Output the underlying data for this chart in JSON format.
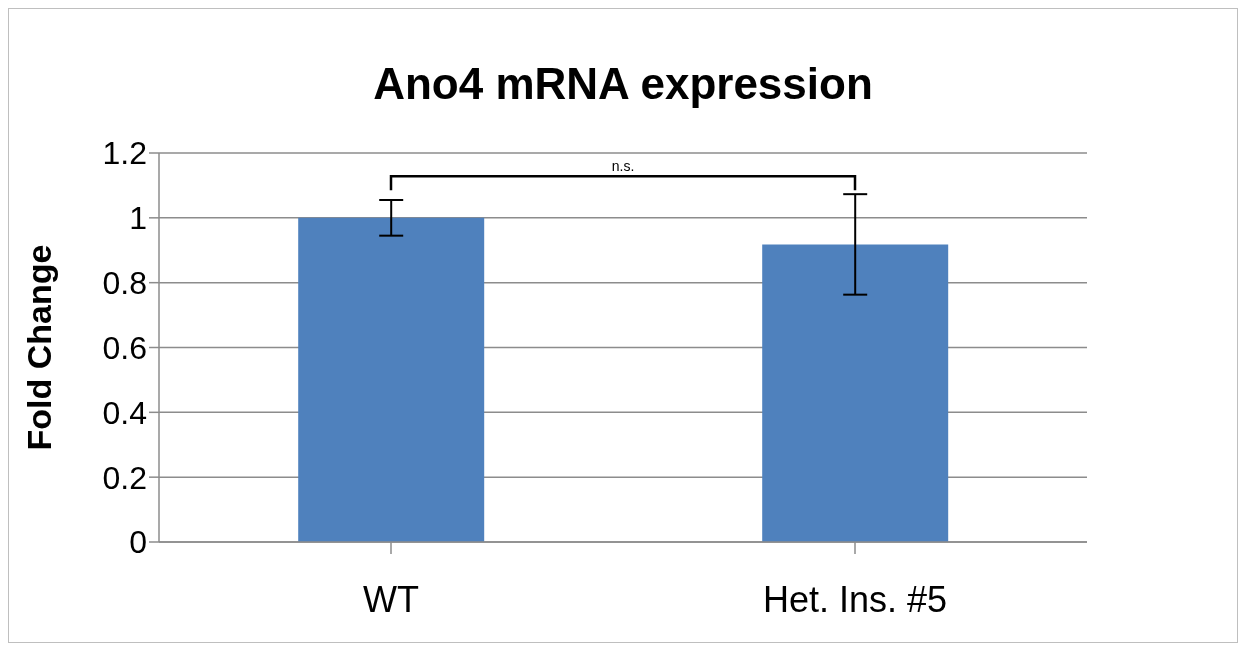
{
  "chart_data": {
    "type": "bar",
    "title": "Ano4 mRNA expression",
    "ylabel": "Fold Change",
    "categories": [
      "WT",
      "Het. Ins. #5"
    ],
    "values": [
      1.0,
      0.918
    ],
    "errors": [
      0.055,
      0.155
    ],
    "color": "#4f81bd",
    "ylim": [
      0,
      1.2
    ],
    "yticks": [
      0,
      0.2,
      0.4,
      0.6,
      0.8,
      1,
      1.2
    ],
    "grid": "y",
    "annotations": [
      "n.s."
    ]
  }
}
